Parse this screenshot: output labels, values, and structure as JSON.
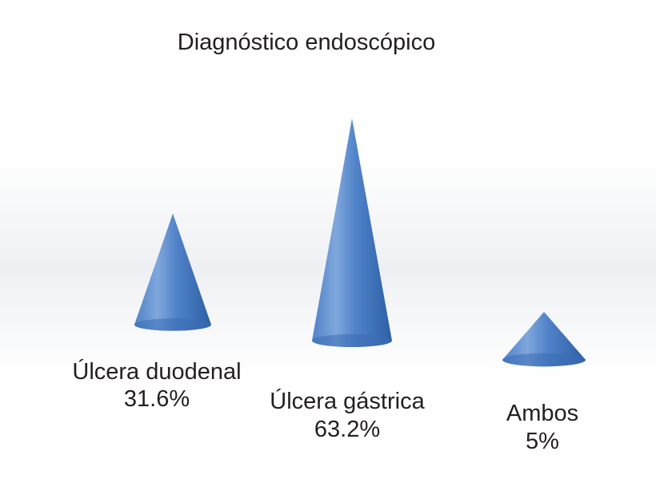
{
  "chart_data": {
    "type": "bar",
    "mark_shape": "cone",
    "title": "Diagnóstico endoscópico",
    "categories": [
      "Úlcera duodenal",
      "Úlcera gástrica",
      "Ambos"
    ],
    "values": [
      31.6,
      63.2,
      5
    ],
    "value_labels": [
      "31.6%",
      "63.2%",
      "5%"
    ],
    "unit": "%",
    "colors": {
      "cone_light": "#7fa7dc",
      "cone_mid": "#4f82c8",
      "cone_dark": "#2e5fa6",
      "base": "#3a6bb4",
      "text": "#231f20",
      "floor": "#eef0f3"
    },
    "grid": false,
    "legend": "none"
  }
}
